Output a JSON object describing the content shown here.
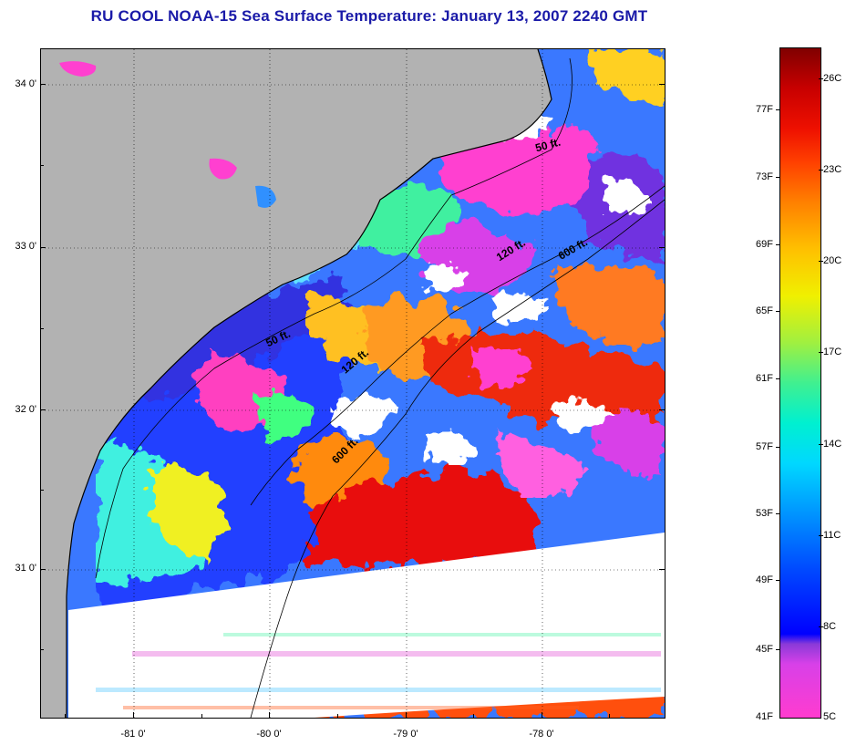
{
  "title": "RU COOL  NOAA-15  Sea Surface Temperature:  January 13, 2007 2240 GMT",
  "map": {
    "lat_labels": [
      "34 0'",
      "33 0'",
      "32 0'",
      "31 0'"
    ],
    "lon_labels": [
      "-81 0'",
      "-80 0'",
      "-79 0'",
      "-78 0'"
    ],
    "isobath_labels": [
      "50 ft.",
      "50 ft.",
      "120 ft.",
      "120 ft.",
      "600 ft.",
      "600 ft."
    ],
    "colors": {
      "land": "#b2b2b2",
      "cloud": "#ffffff",
      "cold": "#ff3ccf",
      "warm": "#e00000",
      "coastline": "#000000"
    }
  },
  "colorbar": {
    "celsius_labels": [
      "26C",
      "23C",
      "20C",
      "17C",
      "14C",
      "11C",
      "8C",
      "5C"
    ],
    "fahrenheit_labels": [
      "77F",
      "73F",
      "69F",
      "65F",
      "61F",
      "57F",
      "53F",
      "49F",
      "45F",
      "41F"
    ]
  }
}
